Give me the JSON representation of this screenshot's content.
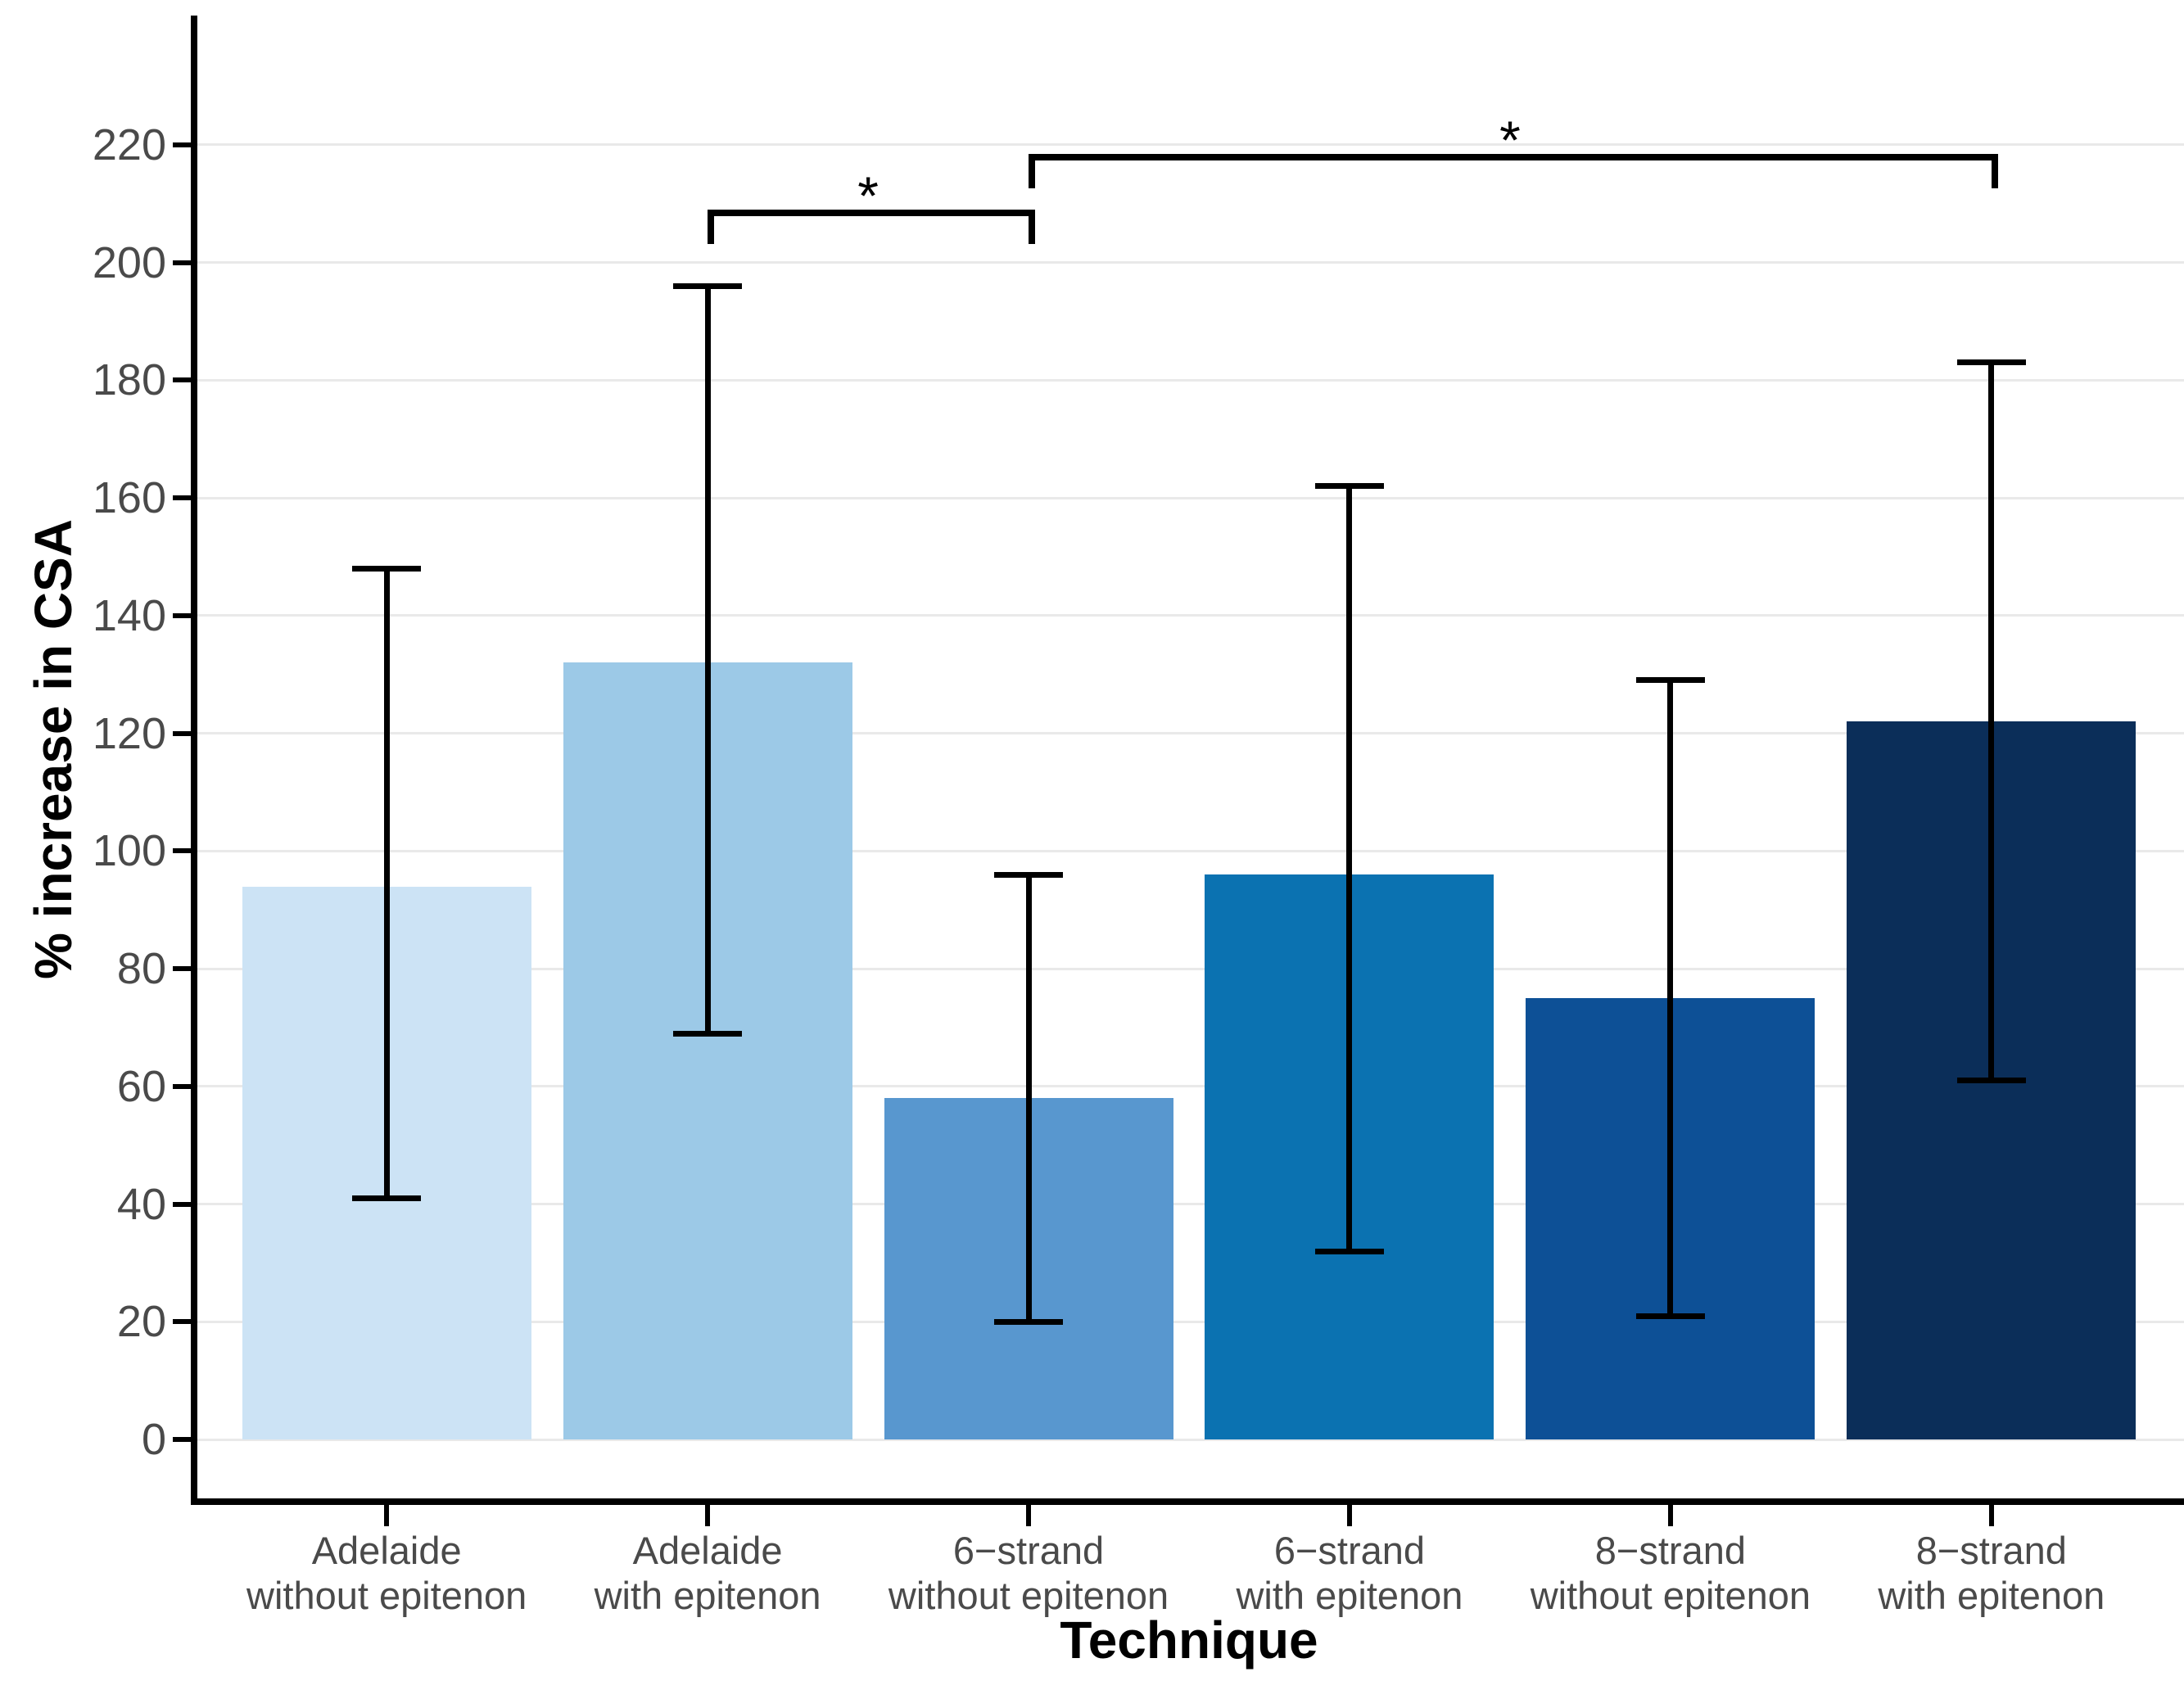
{
  "chart_data": {
    "type": "bar",
    "title": "",
    "xlabel": "Technique",
    "ylabel": "% increase in CSA",
    "categories": [
      {
        "line1": "Adelaide",
        "line2": "without epitenon"
      },
      {
        "line1": "Adelaide",
        "line2": "with epitenon"
      },
      {
        "line1": "6−strand",
        "line2": "without epitenon"
      },
      {
        "line1": "6−strand",
        "line2": "with epitenon"
      },
      {
        "line1": "8−strand",
        "line2": "without epitenon"
      },
      {
        "line1": "8−strand",
        "line2": "with epitenon"
      }
    ],
    "values": [
      94,
      132,
      58,
      96,
      75,
      122
    ],
    "error_low": [
      41,
      69,
      20,
      32,
      21,
      61
    ],
    "error_high": [
      148,
      196,
      96,
      162,
      129,
      183
    ],
    "bar_colors": [
      "#cce3f5",
      "#9cc9e7",
      "#5897cf",
      "#0b72b1",
      "#0d5096",
      "#0b2e59"
    ],
    "y_ticks": [
      0,
      20,
      40,
      60,
      80,
      100,
      120,
      140,
      160,
      180,
      200,
      220
    ],
    "ylim": [
      -10,
      241
    ],
    "grid": "horizontal-only",
    "legend": "none",
    "gridline_color": "#e9e9e9",
    "axis_color": "#000000",
    "tick_label_color": "#4a4a4a",
    "significance_brackets": [
      {
        "from_index": 1,
        "to_index": 2,
        "label": "*",
        "y_value": 209
      },
      {
        "from_index": 2,
        "to_index": 5,
        "label": "*",
        "y_value": 218.5
      }
    ]
  }
}
